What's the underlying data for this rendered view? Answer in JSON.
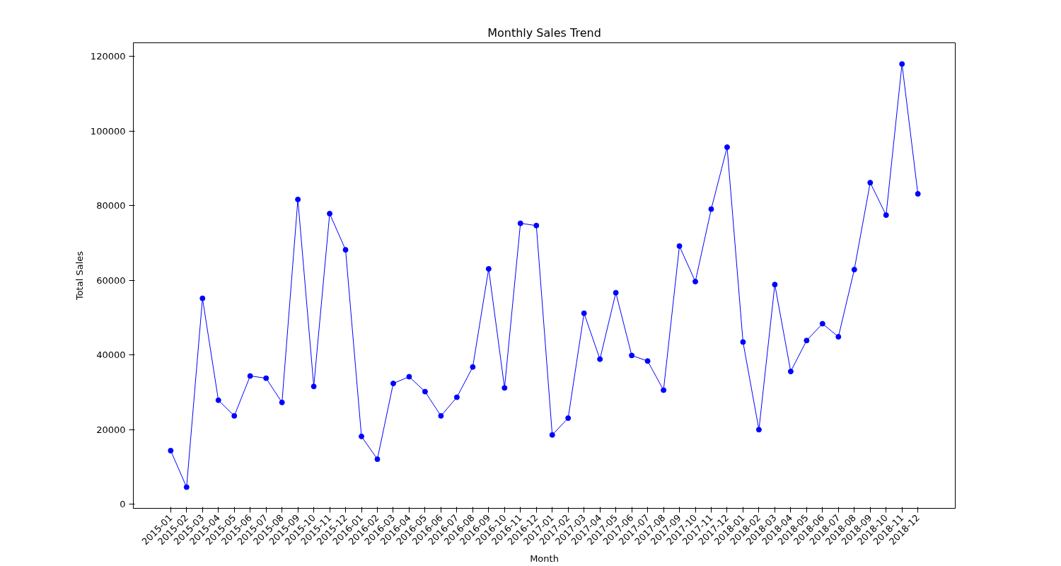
{
  "chart_data": {
    "type": "line",
    "title": "Monthly Sales Trend",
    "xlabel": "Month",
    "ylabel": "Total Sales",
    "categories": [
      "2015-01",
      "2015-02",
      "2015-03",
      "2015-04",
      "2015-05",
      "2015-06",
      "2015-07",
      "2015-08",
      "2015-09",
      "2015-10",
      "2015-11",
      "2015-12",
      "2016-01",
      "2016-02",
      "2016-03",
      "2016-04",
      "2016-05",
      "2016-06",
      "2016-07",
      "2016-08",
      "2016-09",
      "2016-10",
      "2016-11",
      "2016-12",
      "2017-01",
      "2017-02",
      "2017-03",
      "2017-04",
      "2017-05",
      "2017-06",
      "2017-07",
      "2017-08",
      "2017-09",
      "2017-10",
      "2017-11",
      "2017-12",
      "2018-01",
      "2018-02",
      "2018-03",
      "2018-04",
      "2018-05",
      "2018-06",
      "2018-07",
      "2018-08",
      "2018-09",
      "2018-10",
      "2018-11",
      "2018-12"
    ],
    "series": [
      {
        "color": "#0000ff",
        "values": [
          14400,
          4600,
          55200,
          27900,
          23700,
          34400,
          33800,
          27300,
          81700,
          31600,
          77900,
          68200,
          18200,
          12100,
          32400,
          34200,
          30200,
          23700,
          28700,
          36800,
          63100,
          31200,
          75300,
          74700,
          18600,
          23100,
          51200,
          38900,
          56700,
          39900,
          38400,
          30600,
          69200,
          59700,
          79100,
          95700,
          43500,
          20000,
          58900,
          35600,
          43900,
          48400,
          44900,
          62900,
          86200,
          77500,
          118000,
          83200
        ]
      }
    ],
    "ylim": [
      -1070,
      123670
    ],
    "yticks": [
      0,
      20000,
      40000,
      60000,
      80000,
      100000,
      120000
    ],
    "grid": false,
    "marker": "circle",
    "line_style": "solid"
  }
}
